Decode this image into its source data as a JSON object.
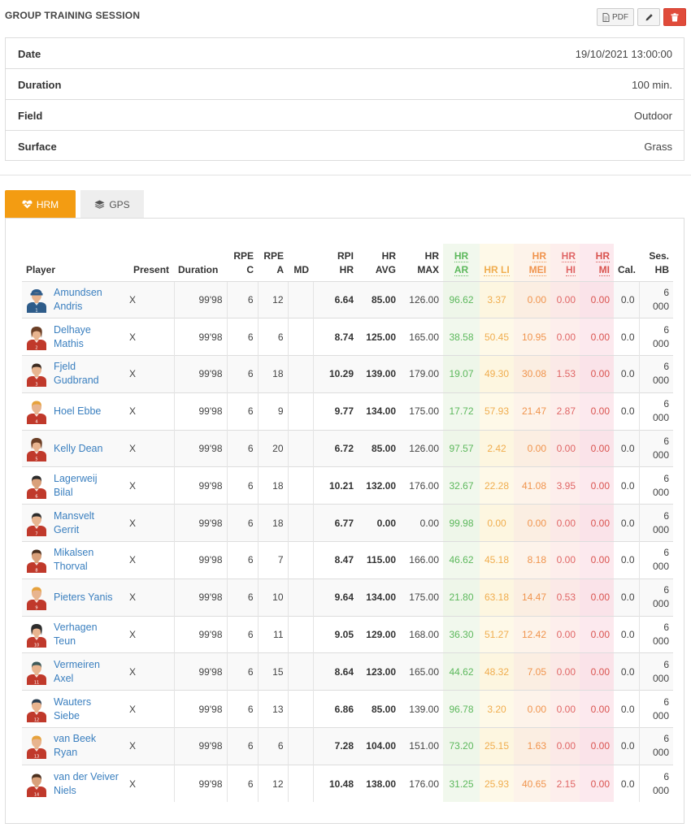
{
  "page": {
    "title": "GROUP TRAINING SESSION"
  },
  "actions": {
    "pdf_label": "PDF"
  },
  "info": [
    {
      "label": "Date",
      "value": "19/10/2021 13:00:00"
    },
    {
      "label": "Duration",
      "value": "100 min."
    },
    {
      "label": "Field",
      "value": "Outdoor"
    },
    {
      "label": "Surface",
      "value": "Grass"
    }
  ],
  "tabs": [
    {
      "label": "HRM",
      "icon": "heartbeat-icon",
      "active": true
    },
    {
      "label": "GPS",
      "icon": "layers-icon",
      "active": false
    }
  ],
  "table": {
    "headers": {
      "player": "Player",
      "present": "Present",
      "duration": "Duration",
      "rpe_c_1": "RPE",
      "rpe_c_2": "C",
      "rpe_a_1": "RPE",
      "rpe_a_2": "A",
      "md": "MD",
      "rpi_1": "RPI",
      "rpi_2": "HR",
      "hravg_1": "HR",
      "hravg_2": "AVG",
      "hrmax_1": "HR",
      "hrmax_2": "MAX",
      "ar_1": "HR",
      "ar_2": "AR",
      "li": "HR LI",
      "mei_1": "HR",
      "mei_2": "MEI",
      "hi_1": "HR",
      "hi_2": "HI",
      "mi_1": "HR",
      "mi_2": "MI",
      "cal": "Cal.",
      "seshb_1": "Ses.",
      "seshb_2": "HB"
    },
    "rows": [
      {
        "name1": "Amundsen",
        "name2": "Andris",
        "present": "X",
        "duration": "99'98",
        "rpe_c": "6",
        "rpe_a": "12",
        "md": "",
        "rpi_hr": "6.64",
        "hr_avg": "85.00",
        "hr_max": "126.00",
        "hr_ar": "96.62",
        "hr_li": "3.37",
        "hr_mei": "0.00",
        "hr_hi": "0.00",
        "hr_mi": "0.00",
        "cal": "0.0",
        "ses_hb1": "6",
        "ses_hb2": "000",
        "avatar": "goalkeeper",
        "shirt": "#2e5c8a",
        "hair": "#2e5c8a",
        "skin": "#e8b48f",
        "num": "1"
      },
      {
        "name1": "Delhaye",
        "name2": "Mathis",
        "present": "X",
        "duration": "99'98",
        "rpe_c": "6",
        "rpe_a": "6",
        "md": "",
        "rpi_hr": "8.74",
        "hr_avg": "125.00",
        "hr_max": "165.00",
        "hr_ar": "38.58",
        "hr_li": "50.45",
        "hr_mei": "10.95",
        "hr_hi": "0.00",
        "hr_mi": "0.00",
        "cal": "0.0",
        "ses_hb1": "6",
        "ses_hb2": "000",
        "avatar": "female",
        "shirt": "#c0392b",
        "hair": "#6b3f26",
        "skin": "#e8b48f",
        "num": "2"
      },
      {
        "name1": "Fjeld",
        "name2": "Gudbrand",
        "present": "X",
        "duration": "99'98",
        "rpe_c": "6",
        "rpe_a": "18",
        "md": "",
        "rpi_hr": "10.29",
        "hr_avg": "139.00",
        "hr_max": "179.00",
        "hr_ar": "19.07",
        "hr_li": "49.30",
        "hr_mei": "30.08",
        "hr_hi": "1.53",
        "hr_mi": "0.00",
        "cal": "0.0",
        "ses_hb1": "6",
        "ses_hb2": "000",
        "avatar": "male",
        "shirt": "#c0392b",
        "hair": "#3b2a20",
        "skin": "#e8b48f",
        "num": "3"
      },
      {
        "name1": "Hoel Ebbe",
        "name2": "",
        "present": "X",
        "duration": "99'98",
        "rpe_c": "6",
        "rpe_a": "9",
        "md": "",
        "rpi_hr": "9.77",
        "hr_avg": "134.00",
        "hr_max": "175.00",
        "hr_ar": "17.72",
        "hr_li": "57.93",
        "hr_mei": "21.47",
        "hr_hi": "2.87",
        "hr_mi": "0.00",
        "cal": "0.0",
        "ses_hb1": "6",
        "ses_hb2": "000",
        "avatar": "male",
        "shirt": "#c0392b",
        "hair": "#e6a23c",
        "skin": "#e8b48f",
        "num": "4"
      },
      {
        "name1": "Kelly Dean",
        "name2": "",
        "present": "X",
        "duration": "99'98",
        "rpe_c": "6",
        "rpe_a": "20",
        "md": "",
        "rpi_hr": "6.72",
        "hr_avg": "85.00",
        "hr_max": "126.00",
        "hr_ar": "97.57",
        "hr_li": "2.42",
        "hr_mei": "0.00",
        "hr_hi": "0.00",
        "hr_mi": "0.00",
        "cal": "0.0",
        "ses_hb1": "6",
        "ses_hb2": "000",
        "avatar": "female",
        "shirt": "#c0392b",
        "hair": "#6b3f26",
        "skin": "#e8b48f",
        "num": "5"
      },
      {
        "name1": "Lagerweij",
        "name2": "Bilal",
        "present": "X",
        "duration": "99'98",
        "rpe_c": "6",
        "rpe_a": "18",
        "md": "",
        "rpi_hr": "10.21",
        "hr_avg": "132.00",
        "hr_max": "176.00",
        "hr_ar": "32.67",
        "hr_li": "22.28",
        "hr_mei": "41.08",
        "hr_hi": "3.95",
        "hr_mi": "0.00",
        "cal": "0.0",
        "ses_hb1": "6",
        "ses_hb2": "000",
        "avatar": "male",
        "shirt": "#c0392b",
        "hair": "#2c2c2c",
        "skin": "#d9a07a",
        "num": "6"
      },
      {
        "name1": "Mansvelt",
        "name2": "Gerrit",
        "present": "X",
        "duration": "99'98",
        "rpe_c": "6",
        "rpe_a": "18",
        "md": "",
        "rpi_hr": "6.77",
        "hr_avg": "0.00",
        "hr_max": "0.00",
        "hr_ar": "99.98",
        "hr_li": "0.00",
        "hr_mei": "0.00",
        "hr_hi": "0.00",
        "hr_mi": "0.00",
        "cal": "0.0",
        "ses_hb1": "6",
        "ses_hb2": "000",
        "avatar": "male",
        "shirt": "#c0392b",
        "hair": "#2c2c2c",
        "skin": "#e8b48f",
        "num": "7"
      },
      {
        "name1": "Mikalsen",
        "name2": "Thorval",
        "present": "X",
        "duration": "99'98",
        "rpe_c": "6",
        "rpe_a": "7",
        "md": "",
        "rpi_hr": "8.47",
        "hr_avg": "115.00",
        "hr_max": "166.00",
        "hr_ar": "46.62",
        "hr_li": "45.18",
        "hr_mei": "8.18",
        "hr_hi": "0.00",
        "hr_mi": "0.00",
        "cal": "0.0",
        "ses_hb1": "6",
        "ses_hb2": "000",
        "avatar": "male",
        "shirt": "#c0392b",
        "hair": "#4a2f1e",
        "skin": "#d9a07a",
        "num": "8"
      },
      {
        "name1": "Pieters Yanis",
        "name2": "",
        "present": "X",
        "duration": "99'98",
        "rpe_c": "6",
        "rpe_a": "10",
        "md": "",
        "rpi_hr": "9.64",
        "hr_avg": "134.00",
        "hr_max": "175.00",
        "hr_ar": "21.80",
        "hr_li": "63.18",
        "hr_mei": "14.47",
        "hr_hi": "0.53",
        "hr_mi": "0.00",
        "cal": "0.0",
        "ses_hb1": "6",
        "ses_hb2": "000",
        "avatar": "male",
        "shirt": "#c0392b",
        "hair": "#e6a23c",
        "skin": "#e8b48f",
        "num": "9"
      },
      {
        "name1": "Verhagen",
        "name2": "Teun",
        "present": "X",
        "duration": "99'98",
        "rpe_c": "6",
        "rpe_a": "11",
        "md": "",
        "rpi_hr": "9.05",
        "hr_avg": "129.00",
        "hr_max": "168.00",
        "hr_ar": "36.30",
        "hr_li": "51.27",
        "hr_mei": "12.42",
        "hr_hi": "0.00",
        "hr_mi": "0.00",
        "cal": "0.0",
        "ses_hb1": "6",
        "ses_hb2": "000",
        "avatar": "female",
        "shirt": "#c0392b",
        "hair": "#2c2c2c",
        "skin": "#e8b48f",
        "num": "10"
      },
      {
        "name1": "Vermeiren",
        "name2": "Axel",
        "present": "X",
        "duration": "99'98",
        "rpe_c": "6",
        "rpe_a": "15",
        "md": "",
        "rpi_hr": "8.64",
        "hr_avg": "123.00",
        "hr_max": "165.00",
        "hr_ar": "44.62",
        "hr_li": "48.32",
        "hr_mei": "7.05",
        "hr_hi": "0.00",
        "hr_mi": "0.00",
        "cal": "0.0",
        "ses_hb1": "6",
        "ses_hb2": "000",
        "avatar": "male",
        "shirt": "#c0392b",
        "hair": "#3d5a5a",
        "skin": "#e8b48f",
        "num": "11"
      },
      {
        "name1": "Wauters",
        "name2": "Siebe",
        "present": "X",
        "duration": "99'98",
        "rpe_c": "6",
        "rpe_a": "13",
        "md": "",
        "rpi_hr": "6.86",
        "hr_avg": "85.00",
        "hr_max": "139.00",
        "hr_ar": "96.78",
        "hr_li": "3.20",
        "hr_mei": "0.00",
        "hr_hi": "0.00",
        "hr_mi": "0.00",
        "cal": "0.0",
        "ses_hb1": "6",
        "ses_hb2": "000",
        "avatar": "male",
        "shirt": "#c0392b",
        "hair": "#2c3e50",
        "skin": "#e8b48f",
        "num": "12"
      },
      {
        "name1": "van Beek",
        "name2": "Ryan",
        "present": "X",
        "duration": "99'98",
        "rpe_c": "6",
        "rpe_a": "6",
        "md": "",
        "rpi_hr": "7.28",
        "hr_avg": "104.00",
        "hr_max": "151.00",
        "hr_ar": "73.20",
        "hr_li": "25.15",
        "hr_mei": "1.63",
        "hr_hi": "0.00",
        "hr_mi": "0.00",
        "cal": "0.0",
        "ses_hb1": "6",
        "ses_hb2": "000",
        "avatar": "male",
        "shirt": "#c0392b",
        "hair": "#e6a23c",
        "skin": "#e8b48f",
        "num": "13"
      },
      {
        "name1": "van der Veiver",
        "name2": "Niels",
        "present": "X",
        "duration": "99'98",
        "rpe_c": "6",
        "rpe_a": "12",
        "md": "",
        "rpi_hr": "10.48",
        "hr_avg": "138.00",
        "hr_max": "176.00",
        "hr_ar": "31.25",
        "hr_li": "25.93",
        "hr_mei": "40.65",
        "hr_hi": "2.15",
        "hr_mi": "0.00",
        "cal": "0.0",
        "ses_hb1": "6",
        "ses_hb2": "000",
        "avatar": "male",
        "shirt": "#c0392b",
        "hair": "#4a2f1e",
        "skin": "#d9a07a",
        "num": "14"
      }
    ]
  }
}
